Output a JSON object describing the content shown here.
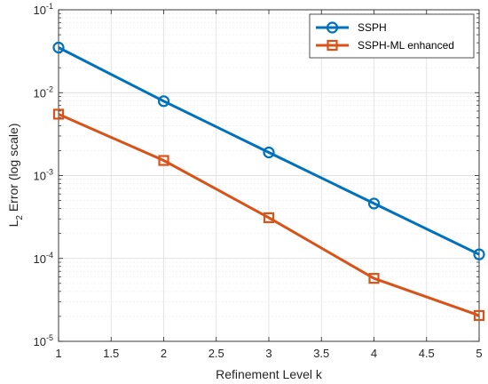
{
  "chart_data": {
    "type": "line",
    "x": [
      1,
      2,
      3,
      4,
      5
    ],
    "series": [
      {
        "name": "SSPH",
        "values": [
          0.035,
          0.0079,
          0.0019,
          0.00046,
          0.000112
        ],
        "color": "#0072BD",
        "marker": "circle"
      },
      {
        "name": "SSPH-ML enhanced",
        "values": [
          0.0055,
          0.00152,
          0.00031,
          5.75e-05,
          2.05e-05
        ],
        "color": "#D95319",
        "marker": "square"
      }
    ],
    "xlabel": "Refinement Level k",
    "ylabel": {
      "main": "L",
      "subscript": "2",
      "rest": " Error (log scale)"
    },
    "xlim": [
      1,
      5
    ],
    "ylim": [
      1e-05,
      0.1
    ],
    "yscale": "log",
    "x_ticks": [
      1,
      1.5,
      2,
      2.5,
      3,
      3.5,
      4,
      4.5,
      5
    ],
    "x_tick_labels": [
      "1",
      "1.5",
      "2",
      "2.5",
      "3",
      "3.5",
      "4",
      "4.5",
      "5"
    ],
    "y_ticks": [
      {
        "value": 1e-05,
        "base": "10",
        "exp": "-5"
      },
      {
        "value": 0.0001,
        "base": "10",
        "exp": "-4"
      },
      {
        "value": 0.001,
        "base": "10",
        "exp": "-3"
      },
      {
        "value": 0.01,
        "base": "10",
        "exp": "-2"
      },
      {
        "value": 0.1,
        "base": "10",
        "exp": "-1"
      }
    ],
    "grid": true,
    "minor_grid": true,
    "legend_position": "top-right"
  }
}
